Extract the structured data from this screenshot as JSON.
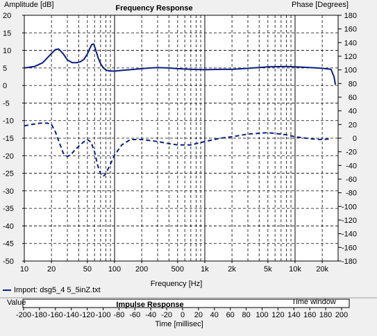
{
  "chart_data": {
    "type": "line",
    "title": "Frequency Response",
    "xlabel": "Frequency [Hz]",
    "ylabel_left": "Amplitude [dB]",
    "ylabel_right": "Phase [Degrees]",
    "x_scale": "log",
    "xlim": [
      10,
      30000
    ],
    "ylim_left": [
      -50,
      20
    ],
    "ylim_right": [
      -180,
      180
    ],
    "x_tick_labels": [
      "10",
      "20",
      "50",
      "100",
      "200",
      "500",
      "1k",
      "2k",
      "5k",
      "10k",
      "20k"
    ],
    "x_tick_values": [
      10,
      20,
      50,
      100,
      200,
      500,
      1000,
      2000,
      5000,
      10000,
      20000
    ],
    "y_left_ticks": [
      20,
      15,
      10,
      5,
      0,
      -5,
      -10,
      -15,
      -20,
      -25,
      -30,
      -35,
      -40,
      -45,
      -50
    ],
    "y_right_ticks": [
      180,
      160,
      140,
      120,
      100,
      80,
      60,
      40,
      20,
      0,
      -20,
      -40,
      -60,
      -80,
      -100,
      -120,
      -140,
      -160,
      -180
    ],
    "grid": true,
    "series": [
      {
        "name": "Import: dsg5_4 5_5inZ.txt",
        "axis": "left",
        "style": "solid",
        "color": "#0a1e82",
        "x": [
          10,
          13,
          16,
          19,
          22,
          24,
          27,
          30,
          34,
          38,
          42,
          46,
          50,
          53,
          56,
          59,
          62,
          66,
          70,
          76,
          82,
          90,
          100,
          120,
          150,
          200,
          250,
          300,
          400,
          500,
          700,
          1000,
          1500,
          2000,
          3000,
          5000,
          8000,
          10000,
          15000,
          20000,
          25000,
          27000,
          28000
        ],
        "y": [
          5,
          5.4,
          6.5,
          8.5,
          10.2,
          10.4,
          9,
          7.3,
          6.5,
          6.5,
          6.8,
          7.5,
          9,
          10.5,
          11.7,
          11.8,
          10,
          7.8,
          6.2,
          4.9,
          4.3,
          4.1,
          4.1,
          4.3,
          4.5,
          4.8,
          5,
          5.1,
          5,
          4.8,
          4.6,
          4.5,
          4.6,
          4.6,
          4.9,
          5.3,
          5.4,
          5.3,
          5.1,
          4.9,
          4.6,
          2.5,
          0.2
        ]
      },
      {
        "name": "Import: dsg5_4 5_5inZ.txt",
        "axis": "right",
        "style": "dashed",
        "color": "#0a1e82",
        "x": [
          10,
          12,
          15,
          18,
          20,
          22,
          25,
          27,
          30,
          33,
          36,
          40,
          45,
          50,
          55,
          60,
          65,
          70,
          75,
          80,
          90,
          100,
          120,
          150,
          200,
          300,
          400,
          500,
          700,
          1000,
          1500,
          2000,
          3000,
          5000,
          8000,
          10000,
          15000,
          20000,
          25000
        ],
        "y": [
          18,
          20,
          22,
          22,
          20,
          10,
          -10,
          -22,
          -27,
          -24,
          -18,
          -12,
          -6,
          -2,
          -6,
          -20,
          -40,
          -52,
          -56,
          -52,
          -38,
          -25,
          -10,
          -2,
          -2,
          -5,
          -8,
          -10,
          -10,
          -5,
          0,
          2,
          6,
          8,
          5,
          2,
          -1,
          -2,
          -1
        ]
      }
    ]
  },
  "legend": {
    "label": "Import: dsg5_4 5_5inZ.txt"
  },
  "impulse": {
    "title": "Impulse Response",
    "value_label": "Value",
    "window_label": "Time window",
    "xlabel": "Time [millisec]",
    "x_tick_labels": [
      "-200",
      "-180",
      "-160",
      "-140",
      "-120",
      "-100",
      "-80",
      "-60",
      "-40",
      "-20",
      "0",
      "20",
      "40",
      "60",
      "80",
      "100",
      "120",
      "140",
      "160",
      "180",
      "200"
    ]
  }
}
